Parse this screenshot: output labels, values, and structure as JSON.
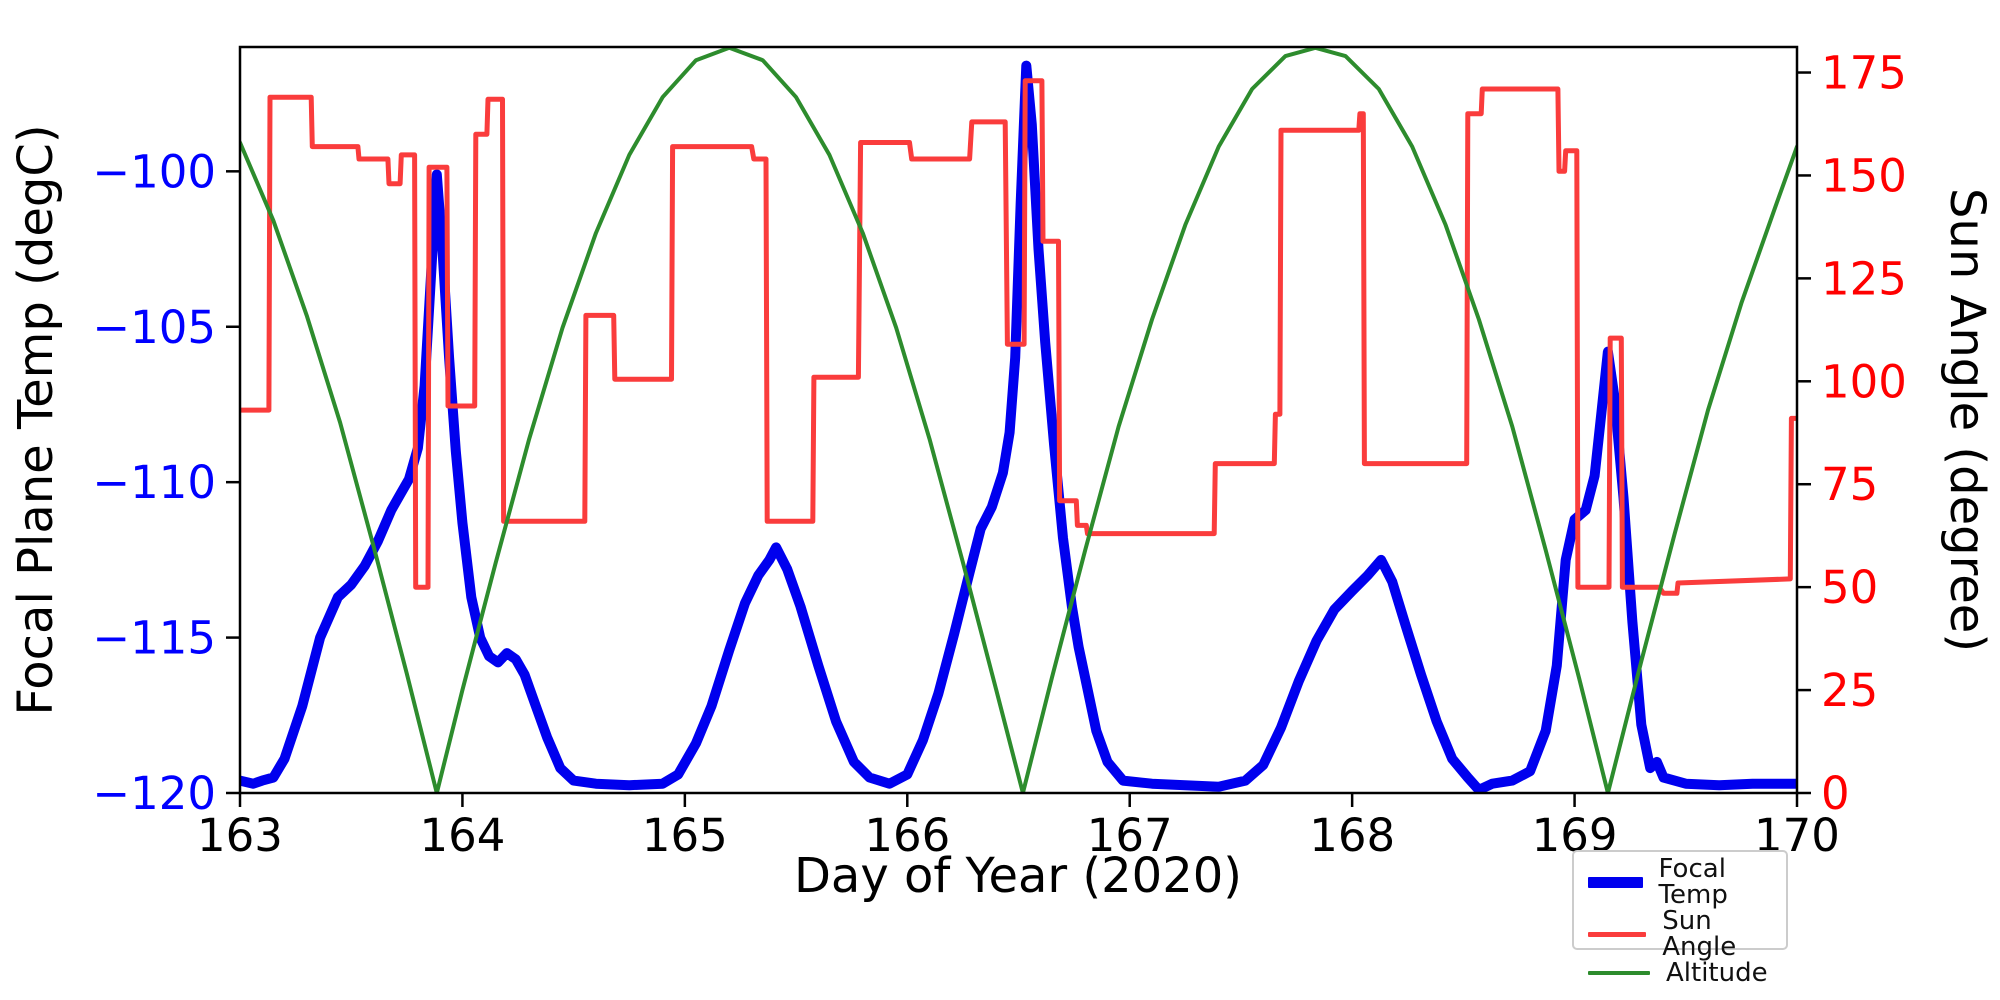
{
  "chart_data": {
    "type": "line",
    "title": "",
    "xlabel": "Day of Year (2020)",
    "ylabel_left": "Focal Plane Temp (degC)",
    "ylabel_right": "Sun Angle (degree)",
    "xlim": [
      163,
      170
    ],
    "ylim_left": [
      -120,
      -96
    ],
    "ylim_right": [
      0,
      181.2
    ],
    "x_ticks": [
      163,
      164,
      165,
      166,
      167,
      168,
      169,
      170
    ],
    "y_ticks_left": [
      -100,
      -105,
      -110,
      -115,
      -120
    ],
    "y_ticks_right": [
      0,
      25,
      50,
      75,
      100,
      125,
      150,
      175
    ],
    "grid": false,
    "legend_position": "lower right",
    "axis_colors": {
      "left_tick_labels": "#0000ff",
      "right_tick_labels": "#ff0000",
      "x_tick_labels": "#000000",
      "spines": "#000000"
    },
    "series": [
      {
        "name": "Focal Temp",
        "axis": "left",
        "color": "#0000ee",
        "width": 10,
        "points": [
          [
            163.0,
            -119.6
          ],
          [
            163.06,
            -119.7
          ],
          [
            163.1,
            -119.6
          ],
          [
            163.15,
            -119.5
          ],
          [
            163.2,
            -118.9
          ],
          [
            163.28,
            -117.2
          ],
          [
            163.36,
            -115.0
          ],
          [
            163.44,
            -113.7
          ],
          [
            163.5,
            -113.3
          ],
          [
            163.56,
            -112.7
          ],
          [
            163.62,
            -111.9
          ],
          [
            163.68,
            -110.9
          ],
          [
            163.72,
            -110.4
          ],
          [
            163.76,
            -109.9
          ],
          [
            163.8,
            -108.9
          ],
          [
            163.83,
            -106.9
          ],
          [
            163.86,
            -103.2
          ],
          [
            163.885,
            -100.1
          ],
          [
            163.91,
            -102.5
          ],
          [
            163.94,
            -106.0
          ],
          [
            163.97,
            -109.0
          ],
          [
            164.0,
            -111.3
          ],
          [
            164.04,
            -113.7
          ],
          [
            164.08,
            -115.0
          ],
          [
            164.12,
            -115.6
          ],
          [
            164.16,
            -115.8
          ],
          [
            164.2,
            -115.5
          ],
          [
            164.24,
            -115.7
          ],
          [
            164.28,
            -116.2
          ],
          [
            164.33,
            -117.2
          ],
          [
            164.38,
            -118.2
          ],
          [
            164.44,
            -119.2
          ],
          [
            164.5,
            -119.6
          ],
          [
            164.6,
            -119.7
          ],
          [
            164.75,
            -119.75
          ],
          [
            164.9,
            -119.7
          ],
          [
            164.97,
            -119.4
          ],
          [
            165.05,
            -118.4
          ],
          [
            165.12,
            -117.2
          ],
          [
            165.2,
            -115.4
          ],
          [
            165.27,
            -113.9
          ],
          [
            165.33,
            -113.0
          ],
          [
            165.38,
            -112.5
          ],
          [
            165.41,
            -112.1
          ],
          [
            165.46,
            -112.8
          ],
          [
            165.52,
            -114.0
          ],
          [
            165.6,
            -115.9
          ],
          [
            165.68,
            -117.7
          ],
          [
            165.76,
            -119.0
          ],
          [
            165.83,
            -119.5
          ],
          [
            165.92,
            -119.7
          ],
          [
            166.0,
            -119.4
          ],
          [
            166.07,
            -118.3
          ],
          [
            166.14,
            -116.8
          ],
          [
            166.21,
            -114.9
          ],
          [
            166.28,
            -112.9
          ],
          [
            166.33,
            -111.5
          ],
          [
            166.38,
            -110.8
          ],
          [
            166.43,
            -109.7
          ],
          [
            166.46,
            -108.4
          ],
          [
            166.485,
            -106.0
          ],
          [
            166.51,
            -101.0
          ],
          [
            166.535,
            -96.6
          ],
          [
            166.56,
            -98.5
          ],
          [
            166.59,
            -102.5
          ],
          [
            166.62,
            -105.5
          ],
          [
            166.66,
            -108.8
          ],
          [
            166.7,
            -111.8
          ],
          [
            166.74,
            -114.0
          ],
          [
            166.77,
            -115.3
          ],
          [
            166.8,
            -116.3
          ],
          [
            166.85,
            -118.0
          ],
          [
            166.9,
            -119.0
          ],
          [
            166.97,
            -119.6
          ],
          [
            167.1,
            -119.7
          ],
          [
            167.25,
            -119.75
          ],
          [
            167.4,
            -119.8
          ],
          [
            167.52,
            -119.6
          ],
          [
            167.6,
            -119.1
          ],
          [
            167.68,
            -117.9
          ],
          [
            167.76,
            -116.4
          ],
          [
            167.84,
            -115.1
          ],
          [
            167.92,
            -114.1
          ],
          [
            168.0,
            -113.5
          ],
          [
            168.07,
            -113.0
          ],
          [
            168.13,
            -112.5
          ],
          [
            168.18,
            -113.2
          ],
          [
            168.24,
            -114.6
          ],
          [
            168.31,
            -116.2
          ],
          [
            168.38,
            -117.7
          ],
          [
            168.45,
            -118.9
          ],
          [
            168.52,
            -119.5
          ],
          [
            168.57,
            -119.9
          ],
          [
            168.63,
            -119.7
          ],
          [
            168.72,
            -119.6
          ],
          [
            168.8,
            -119.3
          ],
          [
            168.87,
            -118.0
          ],
          [
            168.92,
            -115.9
          ],
          [
            168.96,
            -112.5
          ],
          [
            169.0,
            -111.2
          ],
          [
            169.05,
            -110.9
          ],
          [
            169.09,
            -109.8
          ],
          [
            169.12,
            -107.8
          ],
          [
            169.15,
            -105.8
          ],
          [
            169.18,
            -107.3
          ],
          [
            169.22,
            -110.5
          ],
          [
            169.26,
            -114.5
          ],
          [
            169.3,
            -117.8
          ],
          [
            169.34,
            -119.2
          ],
          [
            169.37,
            -119.0
          ],
          [
            169.4,
            -119.5
          ],
          [
            169.5,
            -119.7
          ],
          [
            169.65,
            -119.75
          ],
          [
            169.8,
            -119.7
          ],
          [
            170.0,
            -119.7
          ]
        ]
      },
      {
        "name": "Sun Angle",
        "axis": "right",
        "color": "#fa3c3c",
        "width": 5,
        "points": [
          [
            163.0,
            93
          ],
          [
            163.13,
            93
          ],
          [
            163.135,
            169
          ],
          [
            163.32,
            169
          ],
          [
            163.325,
            157
          ],
          [
            163.53,
            157
          ],
          [
            163.535,
            154
          ],
          [
            163.665,
            154
          ],
          [
            163.67,
            148
          ],
          [
            163.72,
            148
          ],
          [
            163.725,
            155
          ],
          [
            163.785,
            155
          ],
          [
            163.79,
            50
          ],
          [
            163.845,
            50
          ],
          [
            163.85,
            152
          ],
          [
            163.93,
            152
          ],
          [
            163.935,
            94
          ],
          [
            164.055,
            94
          ],
          [
            164.06,
            160
          ],
          [
            164.11,
            160
          ],
          [
            164.115,
            168.5
          ],
          [
            164.18,
            168.5
          ],
          [
            164.185,
            66
          ],
          [
            164.55,
            66
          ],
          [
            164.555,
            116
          ],
          [
            164.68,
            116
          ],
          [
            164.685,
            100.5
          ],
          [
            164.94,
            100.5
          ],
          [
            164.945,
            157
          ],
          [
            165.3,
            157
          ],
          [
            165.31,
            154
          ],
          [
            165.365,
            154
          ],
          [
            165.37,
            66
          ],
          [
            165.575,
            66
          ],
          [
            165.58,
            101
          ],
          [
            165.78,
            101
          ],
          [
            165.79,
            158
          ],
          [
            166.01,
            158
          ],
          [
            166.02,
            154
          ],
          [
            166.28,
            154
          ],
          [
            166.29,
            163
          ],
          [
            166.44,
            163
          ],
          [
            166.45,
            109
          ],
          [
            166.525,
            109
          ],
          [
            166.53,
            173
          ],
          [
            166.605,
            173
          ],
          [
            166.61,
            134
          ],
          [
            166.68,
            134
          ],
          [
            166.685,
            71
          ],
          [
            166.76,
            71
          ],
          [
            166.765,
            65
          ],
          [
            166.805,
            65
          ],
          [
            166.81,
            63
          ],
          [
            167.38,
            63
          ],
          [
            167.385,
            80
          ],
          [
            167.65,
            80
          ],
          [
            167.655,
            92
          ],
          [
            167.675,
            92
          ],
          [
            167.68,
            161
          ],
          [
            168.03,
            161
          ],
          [
            168.035,
            165
          ],
          [
            168.05,
            165
          ],
          [
            168.055,
            80
          ],
          [
            168.515,
            80
          ],
          [
            168.52,
            165
          ],
          [
            168.58,
            165
          ],
          [
            168.585,
            171
          ],
          [
            168.925,
            171
          ],
          [
            168.93,
            151
          ],
          [
            168.955,
            151
          ],
          [
            168.96,
            156
          ],
          [
            169.01,
            156
          ],
          [
            169.015,
            50
          ],
          [
            169.155,
            50
          ],
          [
            169.16,
            110.5
          ],
          [
            169.21,
            110.5
          ],
          [
            169.215,
            50
          ],
          [
            169.38,
            50
          ],
          [
            169.4,
            48.5
          ],
          [
            169.46,
            48.5
          ],
          [
            169.465,
            51
          ],
          [
            169.97,
            52
          ],
          [
            169.975,
            91
          ],
          [
            170.0,
            91
          ]
        ]
      },
      {
        "name": "Altitude",
        "axis": "right",
        "color": "#2d8c2d",
        "width": 4,
        "points": [
          [
            163.0,
            158
          ],
          [
            163.15,
            139
          ],
          [
            163.3,
            116
          ],
          [
            163.45,
            90
          ],
          [
            163.6,
            60
          ],
          [
            163.75,
            29
          ],
          [
            163.885,
            0
          ],
          [
            164.0,
            25
          ],
          [
            164.15,
            56
          ],
          [
            164.3,
            86
          ],
          [
            164.45,
            113
          ],
          [
            164.6,
            136
          ],
          [
            164.75,
            155
          ],
          [
            164.9,
            169
          ],
          [
            165.05,
            178
          ],
          [
            165.2,
            181
          ],
          [
            165.35,
            178
          ],
          [
            165.5,
            169
          ],
          [
            165.65,
            155
          ],
          [
            165.8,
            136
          ],
          [
            165.95,
            113
          ],
          [
            166.1,
            86
          ],
          [
            166.25,
            56
          ],
          [
            166.4,
            25
          ],
          [
            166.52,
            0
          ],
          [
            166.65,
            28
          ],
          [
            166.8,
            59
          ],
          [
            166.95,
            89
          ],
          [
            167.1,
            115
          ],
          [
            167.25,
            138
          ],
          [
            167.4,
            157
          ],
          [
            167.55,
            171
          ],
          [
            167.7,
            179
          ],
          [
            167.835,
            181
          ],
          [
            167.97,
            179
          ],
          [
            168.12,
            171
          ],
          [
            168.27,
            157
          ],
          [
            168.42,
            138
          ],
          [
            168.57,
            115
          ],
          [
            168.72,
            89
          ],
          [
            168.87,
            59
          ],
          [
            169.02,
            28
          ],
          [
            169.15,
            0
          ],
          [
            169.3,
            32
          ],
          [
            169.45,
            63
          ],
          [
            169.6,
            93
          ],
          [
            169.75,
            119
          ],
          [
            169.9,
            142
          ],
          [
            170.0,
            157
          ]
        ]
      }
    ],
    "legend": [
      "Focal Temp",
      "Sun Angle",
      "Altitude"
    ]
  }
}
